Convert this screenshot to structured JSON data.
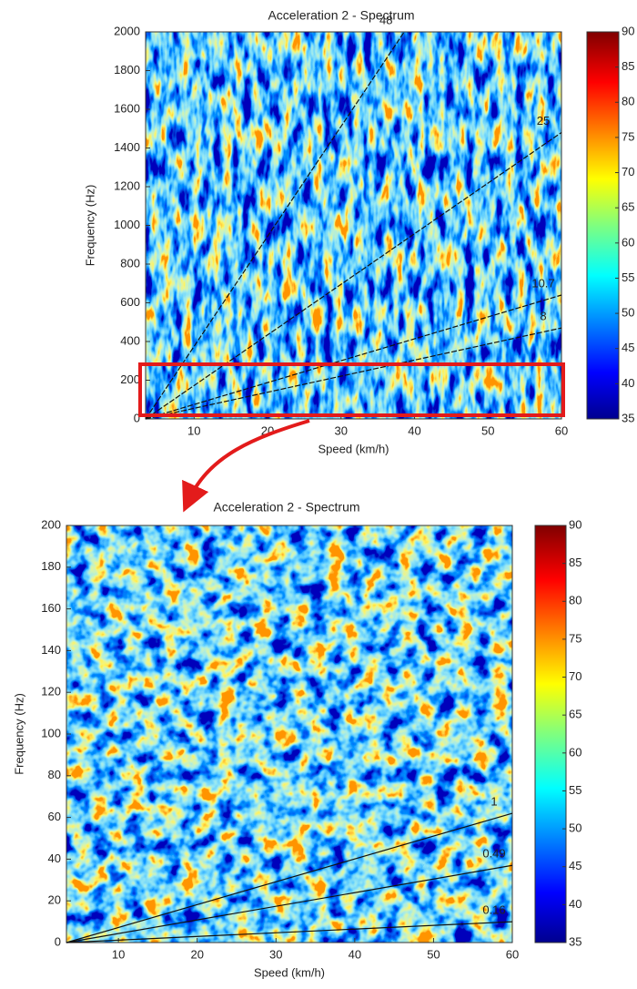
{
  "chart_data": [
    {
      "type": "heatmap",
      "title": "Acceleration 2 - Spectrum",
      "xlabel": "Speed (km/h)",
      "ylabel": "Frequency (Hz)",
      "xlim": [
        3.4,
        60
      ],
      "xticks": [
        10,
        20,
        30,
        40,
        50,
        60
      ],
      "ylim": [
        0,
        2000
      ],
      "yticks": [
        0,
        200,
        400,
        600,
        800,
        1000,
        1200,
        1400,
        1600,
        1800,
        2000
      ],
      "clim": [
        35,
        90
      ],
      "cticks": [
        35,
        40,
        45,
        50,
        55,
        60,
        65,
        70,
        75,
        80,
        85,
        90
      ],
      "series": [
        {
          "name": "48",
          "x": [
            3.4,
            38.6
          ],
          "values": [
            0,
            2000
          ]
        },
        {
          "name": "25",
          "x": [
            3.4,
            60
          ],
          "values": [
            0,
            1480
          ]
        },
        {
          "name": "10.7",
          "x": [
            3.4,
            60
          ],
          "values": [
            0,
            640
          ]
        },
        {
          "name": "8",
          "x": [
            3.4,
            60
          ],
          "values": [
            0,
            470
          ]
        }
      ]
    },
    {
      "type": "heatmap",
      "title": "Acceleration 2 - Spectrum",
      "xlabel": "Speed (km/h)",
      "ylabel": "Frequency (Hz)",
      "xlim": [
        3.4,
        60
      ],
      "xticks": [
        10,
        20,
        30,
        40,
        50,
        60
      ],
      "ylim": [
        0,
        200
      ],
      "yticks": [
        0,
        20,
        40,
        60,
        80,
        100,
        120,
        140,
        160,
        180,
        200
      ],
      "clim": [
        35,
        90
      ],
      "cticks": [
        35,
        40,
        45,
        50,
        55,
        60,
        65,
        70,
        75,
        80,
        85,
        90
      ],
      "series": [
        {
          "name": "1",
          "x": [
            3.4,
            60
          ],
          "values": [
            0,
            62
          ]
        },
        {
          "name": "0.49",
          "x": [
            3.4,
            60
          ],
          "values": [
            0,
            37
          ]
        },
        {
          "name": "0.16",
          "x": [
            3.4,
            60
          ],
          "values": [
            0,
            10
          ]
        }
      ]
    }
  ]
}
